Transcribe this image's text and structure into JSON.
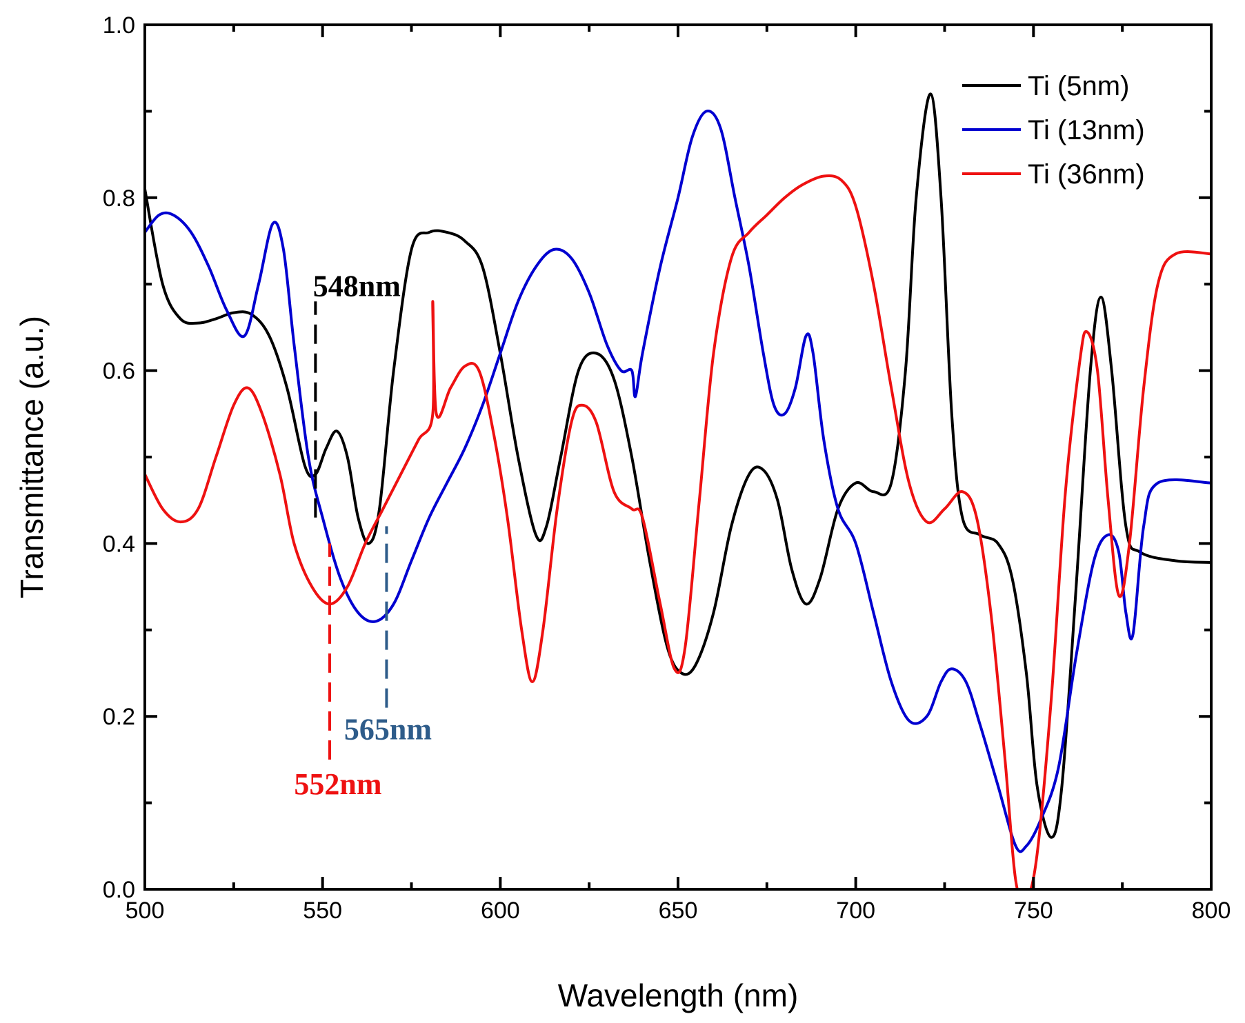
{
  "chart_data": {
    "type": "line",
    "title": "",
    "xlabel": "Wavelength (nm)",
    "ylabel": "Transmittance (a.u.)",
    "xlim": [
      500,
      800
    ],
    "ylim": [
      0.0,
      1.0
    ],
    "xticks": [
      "500",
      "550",
      "600",
      "650",
      "700",
      "750",
      "800"
    ],
    "yticks": [
      "0.0",
      "0.2",
      "0.4",
      "0.6",
      "0.8",
      "1.0"
    ],
    "legend_position": "top-right",
    "series": [
      {
        "name": "Ti (5nm)",
        "color": "#000000",
        "points": [
          [
            500,
            0.81
          ],
          [
            505,
            0.7
          ],
          [
            510,
            0.66
          ],
          [
            515,
            0.655
          ],
          [
            520,
            0.66
          ],
          [
            525,
            0.667
          ],
          [
            530,
            0.665
          ],
          [
            535,
            0.64
          ],
          [
            540,
            0.58
          ],
          [
            545,
            0.49
          ],
          [
            548,
            0.48
          ],
          [
            551,
            0.51
          ],
          [
            554,
            0.53
          ],
          [
            557,
            0.5
          ],
          [
            560,
            0.43
          ],
          [
            563,
            0.4
          ],
          [
            566,
            0.44
          ],
          [
            570,
            0.6
          ],
          [
            575,
            0.74
          ],
          [
            580,
            0.76
          ],
          [
            585,
            0.76
          ],
          [
            590,
            0.75
          ],
          [
            595,
            0.72
          ],
          [
            600,
            0.62
          ],
          [
            605,
            0.5
          ],
          [
            610,
            0.41
          ],
          [
            613,
            0.42
          ],
          [
            617,
            0.5
          ],
          [
            622,
            0.6
          ],
          [
            627,
            0.62
          ],
          [
            632,
            0.59
          ],
          [
            637,
            0.5
          ],
          [
            642,
            0.38
          ],
          [
            647,
            0.28
          ],
          [
            651,
            0.25
          ],
          [
            655,
            0.26
          ],
          [
            660,
            0.32
          ],
          [
            665,
            0.42
          ],
          [
            670,
            0.48
          ],
          [
            674,
            0.485
          ],
          [
            678,
            0.45
          ],
          [
            682,
            0.37
          ],
          [
            686,
            0.33
          ],
          [
            690,
            0.36
          ],
          [
            695,
            0.44
          ],
          [
            700,
            0.47
          ],
          [
            705,
            0.46
          ],
          [
            710,
            0.47
          ],
          [
            714,
            0.6
          ],
          [
            717,
            0.8
          ],
          [
            721,
            0.92
          ],
          [
            724,
            0.8
          ],
          [
            727,
            0.55
          ],
          [
            730,
            0.43
          ],
          [
            735,
            0.41
          ],
          [
            740,
            0.4
          ],
          [
            744,
            0.36
          ],
          [
            748,
            0.25
          ],
          [
            751,
            0.12
          ],
          [
            755,
            0.06
          ],
          [
            758,
            0.12
          ],
          [
            762,
            0.35
          ],
          [
            766,
            0.6
          ],
          [
            769,
            0.685
          ],
          [
            772,
            0.6
          ],
          [
            776,
            0.42
          ],
          [
            780,
            0.39
          ],
          [
            790,
            0.38
          ],
          [
            800,
            0.378
          ]
        ]
      },
      {
        "name": "Ti (13nm)",
        "color": "#0000d0",
        "points": [
          [
            500,
            0.76
          ],
          [
            504,
            0.78
          ],
          [
            508,
            0.78
          ],
          [
            513,
            0.76
          ],
          [
            518,
            0.72
          ],
          [
            523,
            0.67
          ],
          [
            528,
            0.64
          ],
          [
            532,
            0.7
          ],
          [
            536,
            0.77
          ],
          [
            539,
            0.74
          ],
          [
            542,
            0.63
          ],
          [
            546,
            0.5
          ],
          [
            550,
            0.43
          ],
          [
            555,
            0.36
          ],
          [
            560,
            0.32
          ],
          [
            565,
            0.31
          ],
          [
            570,
            0.33
          ],
          [
            575,
            0.38
          ],
          [
            580,
            0.43
          ],
          [
            585,
            0.47
          ],
          [
            590,
            0.51
          ],
          [
            595,
            0.56
          ],
          [
            600,
            0.62
          ],
          [
            605,
            0.68
          ],
          [
            610,
            0.72
          ],
          [
            615,
            0.74
          ],
          [
            620,
            0.73
          ],
          [
            625,
            0.69
          ],
          [
            630,
            0.63
          ],
          [
            634,
            0.6
          ],
          [
            637,
            0.6
          ],
          [
            638,
            0.57
          ],
          [
            640,
            0.62
          ],
          [
            645,
            0.72
          ],
          [
            650,
            0.8
          ],
          [
            654,
            0.87
          ],
          [
            658,
            0.9
          ],
          [
            662,
            0.88
          ],
          [
            666,
            0.8
          ],
          [
            670,
            0.72
          ],
          [
            674,
            0.62
          ],
          [
            677,
            0.56
          ],
          [
            680,
            0.55
          ],
          [
            683,
            0.58
          ],
          [
            686,
            0.64
          ],
          [
            688,
            0.62
          ],
          [
            691,
            0.52
          ],
          [
            695,
            0.44
          ],
          [
            700,
            0.4
          ],
          [
            705,
            0.32
          ],
          [
            710,
            0.24
          ],
          [
            715,
            0.195
          ],
          [
            720,
            0.2
          ],
          [
            724,
            0.24
          ],
          [
            727,
            0.255
          ],
          [
            731,
            0.24
          ],
          [
            735,
            0.19
          ],
          [
            740,
            0.12
          ],
          [
            745,
            0.05
          ],
          [
            748,
            0.05
          ],
          [
            752,
            0.08
          ],
          [
            757,
            0.14
          ],
          [
            762,
            0.27
          ],
          [
            767,
            0.38
          ],
          [
            771,
            0.41
          ],
          [
            774,
            0.39
          ],
          [
            776,
            0.32
          ],
          [
            778,
            0.295
          ],
          [
            781,
            0.42
          ],
          [
            785,
            0.47
          ],
          [
            800,
            0.47
          ]
        ]
      },
      {
        "name": "Ti (36nm)",
        "color": "#ee1111",
        "points": [
          [
            500,
            0.48
          ],
          [
            505,
            0.44
          ],
          [
            510,
            0.425
          ],
          [
            515,
            0.44
          ],
          [
            520,
            0.5
          ],
          [
            525,
            0.56
          ],
          [
            529,
            0.58
          ],
          [
            533,
            0.55
          ],
          [
            538,
            0.48
          ],
          [
            542,
            0.4
          ],
          [
            547,
            0.35
          ],
          [
            552,
            0.33
          ],
          [
            557,
            0.35
          ],
          [
            562,
            0.4
          ],
          [
            567,
            0.44
          ],
          [
            572,
            0.48
          ],
          [
            577,
            0.52
          ],
          [
            581,
            0.55
          ],
          [
            581,
            0.68
          ],
          [
            582,
            0.55
          ],
          [
            586,
            0.58
          ],
          [
            590,
            0.605
          ],
          [
            594,
            0.6
          ],
          [
            598,
            0.53
          ],
          [
            602,
            0.43
          ],
          [
            606,
            0.3
          ],
          [
            609,
            0.24
          ],
          [
            612,
            0.3
          ],
          [
            616,
            0.44
          ],
          [
            620,
            0.54
          ],
          [
            623,
            0.56
          ],
          [
            627,
            0.54
          ],
          [
            632,
            0.46
          ],
          [
            637,
            0.44
          ],
          [
            640,
            0.43
          ],
          [
            645,
            0.33
          ],
          [
            649,
            0.255
          ],
          [
            652,
            0.28
          ],
          [
            656,
            0.45
          ],
          [
            660,
            0.62
          ],
          [
            665,
            0.73
          ],
          [
            670,
            0.76
          ],
          [
            675,
            0.78
          ],
          [
            680,
            0.8
          ],
          [
            685,
            0.815
          ],
          [
            691,
            0.825
          ],
          [
            696,
            0.82
          ],
          [
            700,
            0.79
          ],
          [
            705,
            0.7
          ],
          [
            710,
            0.58
          ],
          [
            715,
            0.47
          ],
          [
            720,
            0.425
          ],
          [
            725,
            0.44
          ],
          [
            730,
            0.46
          ],
          [
            734,
            0.43
          ],
          [
            738,
            0.32
          ],
          [
            742,
            0.15
          ],
          [
            745,
            0.01
          ],
          [
            748,
            -0.01
          ],
          [
            751,
            0.04
          ],
          [
            755,
            0.22
          ],
          [
            759,
            0.46
          ],
          [
            763,
            0.61
          ],
          [
            765,
            0.645
          ],
          [
            768,
            0.6
          ],
          [
            771,
            0.45
          ],
          [
            774,
            0.34
          ],
          [
            777,
            0.4
          ],
          [
            781,
            0.58
          ],
          [
            785,
            0.7
          ],
          [
            790,
            0.735
          ],
          [
            800,
            0.735
          ]
        ]
      }
    ],
    "annotations": [
      {
        "label": "548nm",
        "x": 548,
        "y_from": 0.43,
        "y_to": 0.68,
        "color": "#000000",
        "anchor": "above"
      },
      {
        "label": "565nm",
        "x": 568,
        "y_from": 0.21,
        "y_to": 0.42,
        "color": "#2e5c8a",
        "anchor": "below-right"
      },
      {
        "label": "552nm",
        "x": 552,
        "y_from": 0.15,
        "y_to": 0.4,
        "color": "#ee1111",
        "anchor": "below"
      }
    ]
  }
}
